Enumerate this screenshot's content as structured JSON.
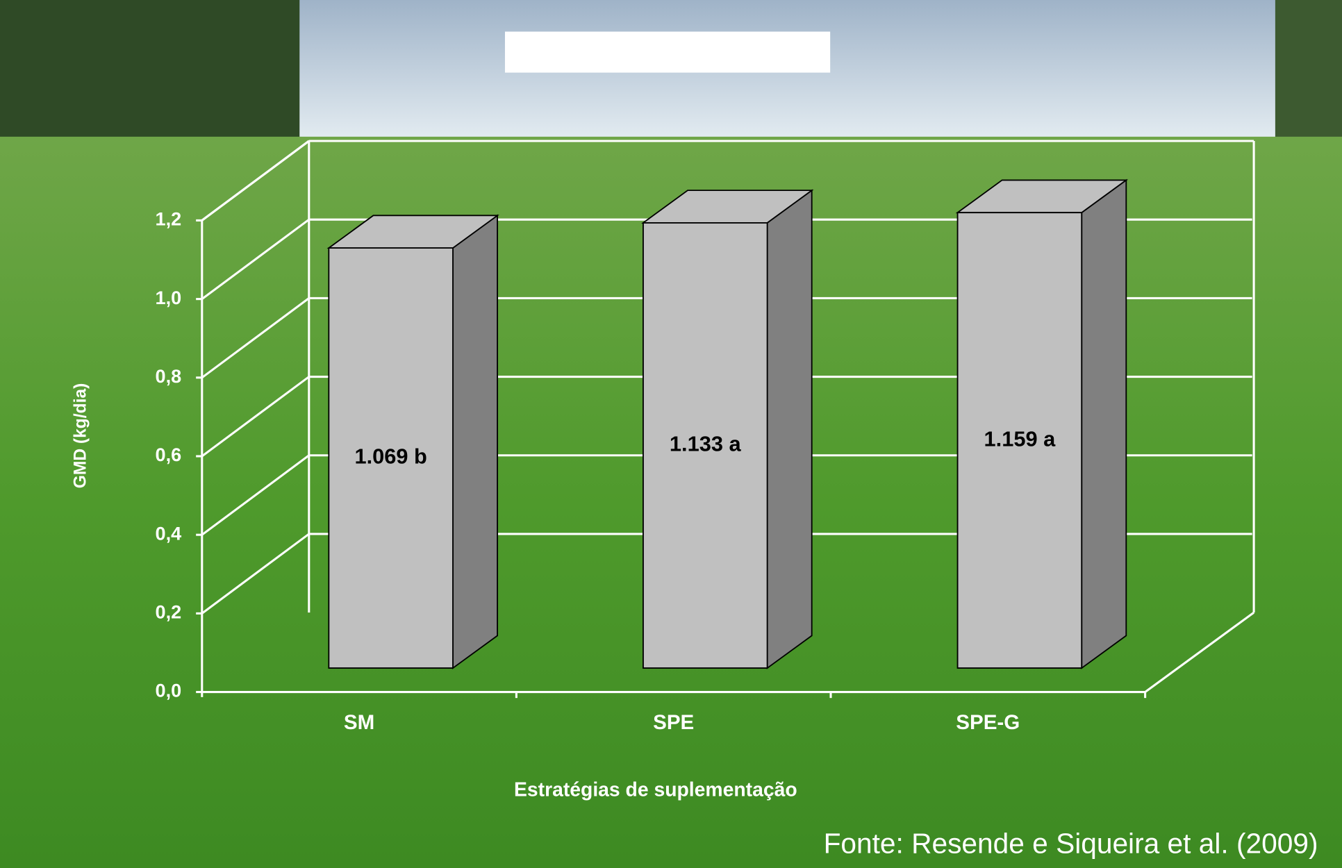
{
  "chart_data": {
    "type": "bar3d",
    "y_axis_label": "GMD (kg/dia)",
    "x_axis_label": "Estratégias de suplementação",
    "source": "Fonte:  Resende e Siqueira et al. (2009)",
    "categories": [
      "SM",
      "SPE",
      "SPE-G"
    ],
    "values": [
      1.069,
      1.133,
      1.159
    ],
    "value_labels": [
      "1.069 b",
      "1.133 a",
      "1.159 a"
    ],
    "color": "#c0c0c0",
    "ylim": [
      0,
      1.2
    ],
    "yticks": [
      {
        "value": 0,
        "label": "0,0"
      },
      {
        "value": 0.2,
        "label": "0,2"
      },
      {
        "value": 0.4,
        "label": "0,4"
      },
      {
        "value": 0.6,
        "label": "0,6"
      },
      {
        "value": 0.8,
        "label": "0,8"
      },
      {
        "value": 1,
        "label": "1,0"
      },
      {
        "value": 1.2,
        "label": "1,2"
      }
    ],
    "grid": true
  }
}
